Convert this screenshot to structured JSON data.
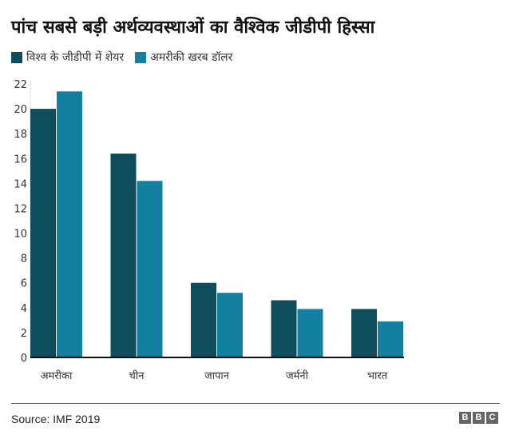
{
  "chart_data": {
    "type": "bar",
    "title": "पांच सबसे बड़ी अर्थव्यवस्थाओं का वैश्विक जीडीपी हिस्सा",
    "categories": [
      "अमरीका",
      "चीन",
      "जापान",
      "जर्मनी",
      "भारत"
    ],
    "series": [
      {
        "name": "विश्व के जीडीपी में शेयर",
        "color": "#0d4d5e",
        "values": [
          20.0,
          16.4,
          6.0,
          4.6,
          3.9
        ]
      },
      {
        "name": "अमरीकी खरब डॉलर",
        "color": "#1380a1",
        "values": [
          21.4,
          14.2,
          5.2,
          3.9,
          2.9
        ]
      }
    ],
    "ylim": [
      0,
      22
    ],
    "yticks": [
      0,
      2,
      4,
      6,
      8,
      10,
      12,
      14,
      16,
      18,
      20,
      22
    ],
    "grid": false,
    "legend_position": "top-left"
  },
  "footer": {
    "source": "Source:  IMF  2019",
    "logo": [
      "B",
      "B",
      "C"
    ]
  }
}
